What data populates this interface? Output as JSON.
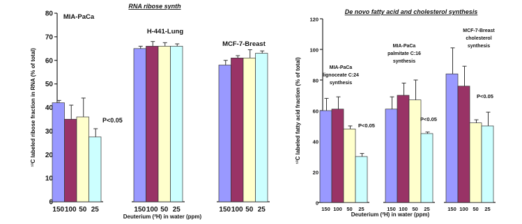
{
  "colors": {
    "c150": "#9999ff",
    "c100": "#993366",
    "c50": "#ffffcc",
    "c25": "#ccffff"
  },
  "chart_data": [
    {
      "type": "bar",
      "title": "RNA ribose synth",
      "ylabel": "¹³C labeled ribose fraction in RNA (% of total)",
      "xlabel": "Deuterium (²H) in water (ppm)",
      "ylim": [
        0,
        80
      ],
      "yticks": [
        "0",
        "10",
        "20",
        "30",
        "40",
        "50",
        "60",
        "70",
        "80"
      ],
      "categories": [
        "150",
        "100",
        "50",
        "25"
      ],
      "groups": [
        {
          "label": "MIA-PaCa",
          "values": [
            42,
            35,
            36,
            27.5
          ],
          "errors": [
            1,
            6,
            8,
            3.5
          ],
          "pval": "P<0.05"
        },
        {
          "label": "H-441-Lung",
          "values": [
            65,
            66,
            66,
            66
          ],
          "errors": [
            1,
            2,
            1.5,
            1
          ],
          "pval": ""
        },
        {
          "label": "MCF-7-Breast",
          "values": [
            58,
            61,
            61,
            63
          ],
          "errors": [
            2,
            1,
            3.5,
            1
          ],
          "pval": ""
        }
      ]
    },
    {
      "type": "bar",
      "title": "De novo fatty acid and cholesterol synthesis",
      "ylabel": "¹³C labeled fatty acid fraction (% of total)",
      "xlabel": "Deuterium (²H) in water (ppm)",
      "ylim": [
        0,
        120
      ],
      "yticks": [
        "0",
        "20",
        "40",
        "60",
        "80",
        "100",
        "120"
      ],
      "categories": [
        "150",
        "100",
        "50",
        "25"
      ],
      "groups": [
        {
          "label_lines": [
            "MIA-PaCa",
            "lignoceate C:24",
            "synthesis"
          ],
          "values": [
            60,
            61,
            48,
            30
          ],
          "errors": [
            8,
            8,
            2,
            2
          ],
          "pval": "P<0.05"
        },
        {
          "label_lines": [
            "MIA-PaCa",
            "palmitate C:16",
            "synthesis"
          ],
          "values": [
            61,
            70,
            67,
            45
          ],
          "errors": [
            8,
            8,
            13,
            1
          ],
          "pval": "P<0.05"
        },
        {
          "label_lines": [
            "MCF-7-Breast",
            "cholesterol",
            "synthesis"
          ],
          "values": [
            84,
            76,
            52,
            50
          ],
          "errors": [
            17,
            13,
            2,
            9
          ],
          "pval": "P<0.05"
        }
      ]
    }
  ]
}
